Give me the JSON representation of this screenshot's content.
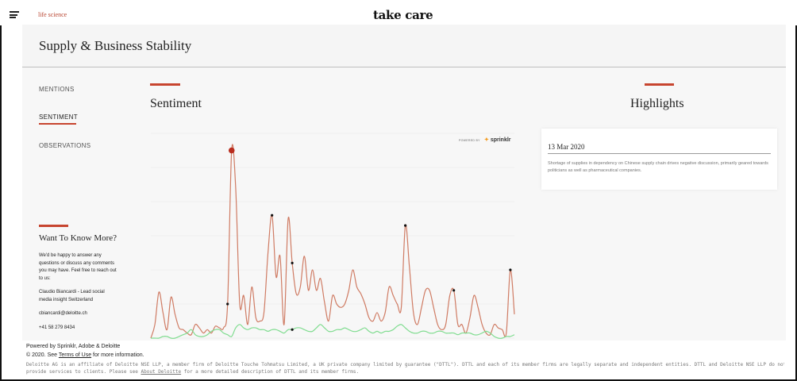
{
  "topbar": {
    "brand_tag": "life science",
    "logo": "take care",
    "menu_icon": "hamburger-menu-icon"
  },
  "header": {
    "title": "Supply & Business Stability"
  },
  "nav": {
    "items": [
      {
        "label": "MENTIONS"
      },
      {
        "label": "SENTIMENT"
      },
      {
        "label": "OBSERVATIONS"
      }
    ],
    "active": "SENTIMENT"
  },
  "contact": {
    "title": "Want To Know More?",
    "intro": "We'd be happy to answer any questions or discuss any comments you may have. Feel free to reach out to us:",
    "person": "Claudio Biancardi - Lead social media insight Switzerland",
    "email": "cbiancardi@deloitte.ch",
    "phone": "+41 58 279 8434"
  },
  "sentiment": {
    "title": "Sentiment",
    "powered_by": "POWERED BY",
    "vendor": "sprinklr"
  },
  "highlights": {
    "title": "Highlights",
    "date": "13 Mar 2020",
    "text": "Shortage of supplies in dependency on Chinese supply chain drives negative discussion, primarily geared towards politicians as well as pharmaceutical companies."
  },
  "colors": {
    "accent": "#c7452f",
    "negative_line": "#cf7b63",
    "positive_line": "#7fdc8f",
    "highlight_marker": "#b92d1e"
  },
  "chart_data": {
    "type": "line",
    "x_count": 91,
    "ylim": [
      0,
      120
    ],
    "grid": true,
    "legend": "none",
    "series": [
      {
        "values": [
          0,
          8,
          27,
          15,
          5,
          24,
          14,
          6,
          5,
          3,
          2,
          8,
          6,
          3,
          5,
          3,
          7,
          6,
          6,
          20,
          110,
          88,
          20,
          25,
          8,
          30,
          12,
          10,
          15,
          50,
          72,
          36,
          48,
          8,
          70,
          44,
          26,
          30,
          48,
          28,
          40,
          28,
          35,
          21,
          10,
          25,
          20,
          18,
          20,
          28,
          40,
          30,
          26,
          20,
          12,
          10,
          15,
          10,
          15,
          30,
          25,
          20,
          18,
          66,
          42,
          15,
          8,
          18,
          28,
          28,
          18,
          8,
          5,
          8,
          25,
          28,
          8,
          8,
          3,
          12,
          25,
          18,
          8,
          3,
          2,
          8,
          6,
          5,
          3,
          40,
          14
        ],
        "markers": [
          20,
          30,
          35,
          63,
          75,
          89,
          19
        ]
      },
      {
        "values": [
          0,
          0,
          0,
          1,
          1,
          0,
          0,
          1,
          2,
          3,
          5,
          2,
          1,
          1,
          2,
          4,
          5,
          5,
          3,
          2,
          1,
          6,
          8,
          6,
          5,
          6,
          6,
          5,
          5,
          4,
          5,
          5,
          4,
          3,
          5,
          5,
          6,
          6,
          5,
          4,
          4,
          6,
          8,
          6,
          4,
          4,
          5,
          5,
          6,
          5,
          4,
          4,
          5,
          6,
          4,
          3,
          4,
          3,
          4,
          4,
          5,
          7,
          8,
          6,
          4,
          3,
          3,
          4,
          4,
          3,
          3,
          4,
          4,
          3,
          3,
          3,
          2,
          3,
          3,
          3,
          2,
          2,
          3,
          4,
          3,
          1,
          0,
          0,
          1,
          1,
          2
        ],
        "markers": [
          35
        ]
      }
    ],
    "highlight_index": 20
  },
  "footer": {
    "powered": "Powered by Sprinklr, Adobe & Deloitte",
    "copyright_prefix": "© 2020. See",
    "terms_link": "Terms of Use",
    "copyright_suffix": "for more information.",
    "legal_1": "Deloitte AG is an affiliate of Deloitte NSE LLP, a member firm of Deloitte Touche Tohmatsu Limited, a UK private company limited by guarantee (\"DTTL\"). DTTL and each of its member firms are legally separate and independent entities. DTTL and Deloitte NSE LLP do not",
    "legal_2_prefix": "provide services to clients. Please see",
    "legal_link": "About Deloitte",
    "legal_2_suffix": "for a more detailed description of DTTL and its member firms."
  }
}
